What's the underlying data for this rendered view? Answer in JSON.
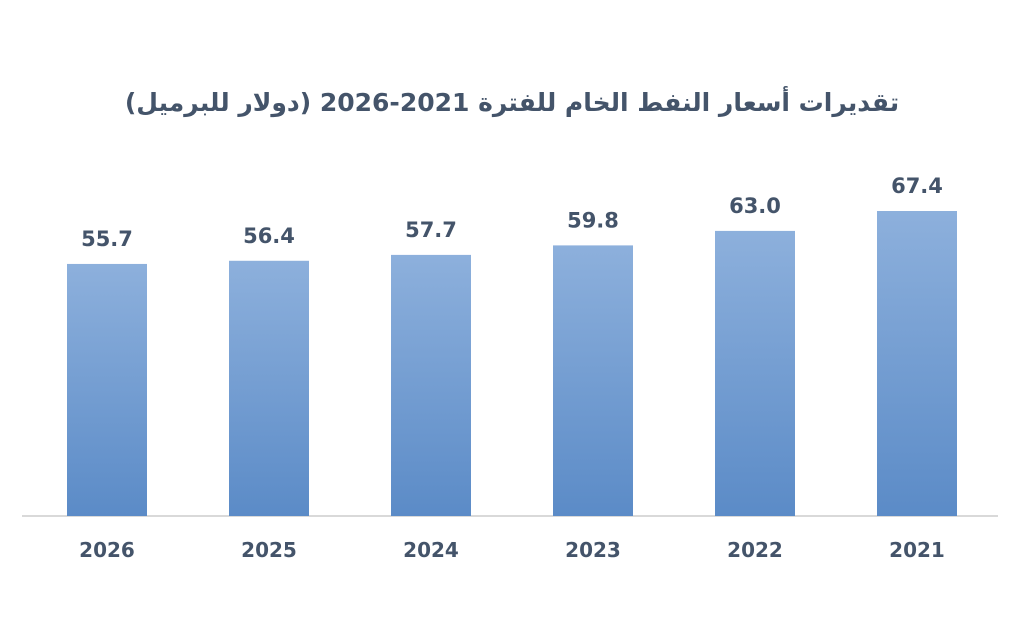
{
  "chart_data": {
    "type": "bar",
    "title": "تقديرات أسعار النفط الخام للفترة 2021-2026 (دولار للبرميل)",
    "categories": [
      "2026",
      "2025",
      "2024",
      "2023",
      "2022",
      "2021"
    ],
    "values": [
      55.7,
      56.4,
      57.7,
      59.8,
      63.0,
      67.4
    ],
    "value_labels": [
      "55.7",
      "56.4",
      "57.7",
      "59.8",
      "63.0",
      "67.4"
    ],
    "xlabel": "",
    "ylabel": "",
    "ylim": [
      0,
      67.4
    ],
    "grid": false,
    "legend": "none",
    "colors": {
      "bar_top": "#8db0dc",
      "bar_bottom": "#5b8bc7",
      "text": "#44546a",
      "axis": "#d9d9d9"
    }
  }
}
